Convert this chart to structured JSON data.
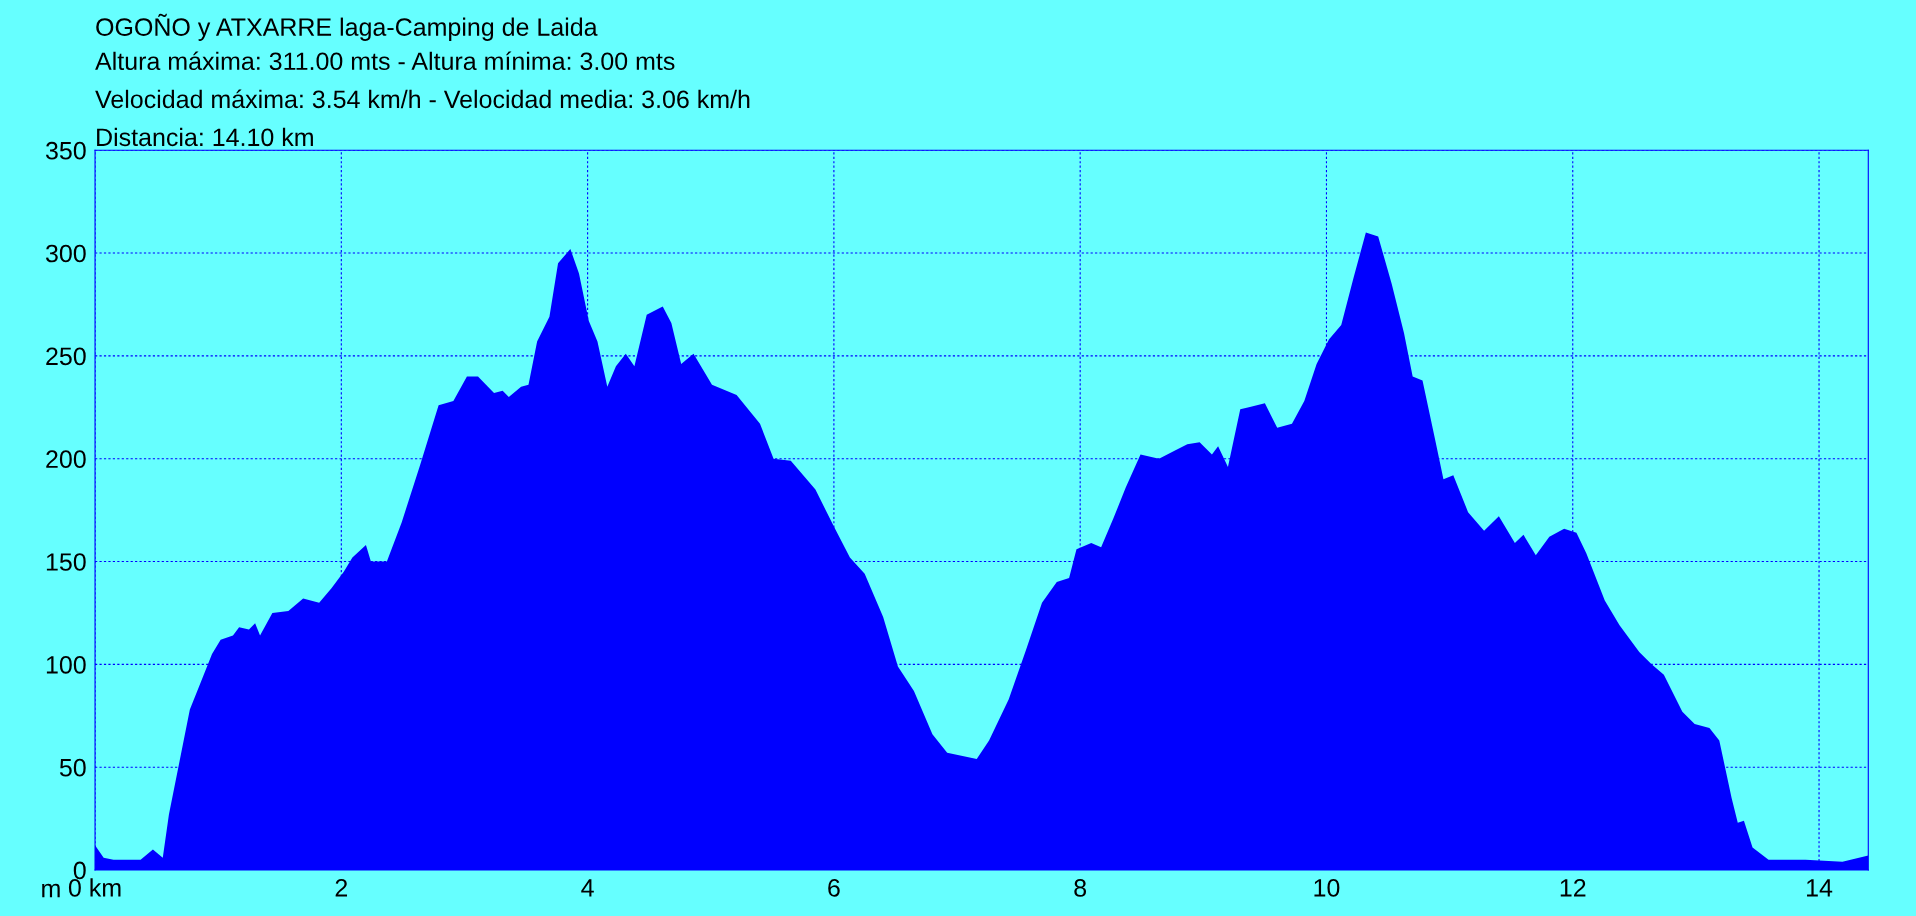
{
  "chart_data": {
    "type": "area",
    "title": "OGOÑO y ATXARRE laga-Camping de Laida",
    "annotations": [
      "Altura máxima: 311.00 mts - Altura mínima: 3.00 mts",
      "Velocidad máxima: 3.54 km/h - Velocidad media: 3.06 km/h",
      "Distancia: 14.10 km"
    ],
    "ylabel": "m",
    "xlim": [
      0,
      14.4
    ],
    "ylim": [
      0,
      350
    ],
    "xticks": [
      {
        "value": 0,
        "label": "0 km"
      },
      2,
      4,
      6,
      8,
      10,
      12,
      14
    ],
    "yticks": [
      0,
      50,
      100,
      150,
      200,
      250,
      300,
      350
    ],
    "grid": true,
    "series": [
      {
        "color": "#0000ff",
        "x": [
          0,
          0.07,
          0.15,
          0.37,
          0.47,
          0.55,
          0.6,
          0.7,
          0.77,
          0.87,
          0.95,
          1.02,
          1.12,
          1.17,
          1.25,
          1.3,
          1.34,
          1.44,
          1.57,
          1.69,
          1.82,
          1.92,
          2.02,
          2.09,
          2.2,
          2.24,
          2.37,
          2.49,
          2.64,
          2.79,
          2.91,
          3.02,
          3.11,
          3.24,
          3.31,
          3.36,
          3.46,
          3.52,
          3.59,
          3.69,
          3.76,
          3.86,
          3.93,
          4.01,
          4.08,
          4.16,
          4.23,
          4.31,
          4.38,
          4.48,
          4.61,
          4.68,
          4.76,
          4.86,
          5.01,
          5.21,
          5.4,
          5.51,
          5.65,
          5.85,
          6.0,
          6.13,
          6.25,
          6.4,
          6.52,
          6.65,
          6.8,
          6.92,
          7.16,
          7.26,
          7.42,
          7.56,
          7.69,
          7.81,
          7.91,
          7.97,
          8.09,
          8.17,
          8.27,
          8.37,
          8.49,
          8.64,
          8.77,
          8.87,
          8.97,
          9.07,
          9.12,
          9.2,
          9.3,
          9.37,
          9.5,
          9.6,
          9.72,
          9.82,
          9.92,
          10.02,
          10.12,
          10.22,
          10.32,
          10.42,
          10.53,
          10.63,
          10.7,
          10.78,
          10.88,
          10.95,
          11.03,
          11.15,
          11.28,
          11.4,
          11.53,
          11.6,
          11.7,
          11.81,
          11.93,
          12.03,
          12.11,
          12.26,
          12.38,
          12.54,
          12.64,
          12.74,
          12.89,
          12.99,
          13.11,
          13.19,
          13.29,
          13.34,
          13.39,
          13.46,
          13.59,
          13.89,
          14.19,
          14.4
        ],
        "values": [
          12,
          6,
          5,
          5,
          10,
          6,
          27,
          57,
          78,
          93,
          105,
          112,
          114,
          118,
          117,
          120,
          114,
          125,
          126,
          132,
          130,
          137,
          145,
          152,
          158,
          150,
          150,
          169,
          197,
          226,
          228,
          240,
          240,
          232,
          233,
          230,
          235,
          236,
          257,
          269,
          295,
          302,
          290,
          267,
          257,
          235,
          245,
          251,
          245,
          270,
          274,
          266,
          246,
          251,
          236,
          231,
          217,
          200,
          199,
          185,
          167,
          152,
          144,
          123,
          99,
          87,
          66,
          57,
          54,
          63,
          83,
          107,
          130,
          140,
          142,
          156,
          159,
          157,
          171,
          186,
          202,
          200,
          204,
          207,
          208,
          202,
          206,
          196,
          224,
          225,
          227,
          215,
          217,
          228,
          246,
          258,
          265,
          288,
          310,
          308,
          285,
          261,
          240,
          238,
          210,
          190,
          192,
          174,
          165,
          172,
          159,
          163,
          153,
          162,
          166,
          164,
          154,
          131,
          119,
          106,
          100,
          95,
          77,
          71,
          69,
          63,
          35,
          23,
          24,
          11,
          5,
          5,
          4,
          7
        ]
      }
    ]
  }
}
